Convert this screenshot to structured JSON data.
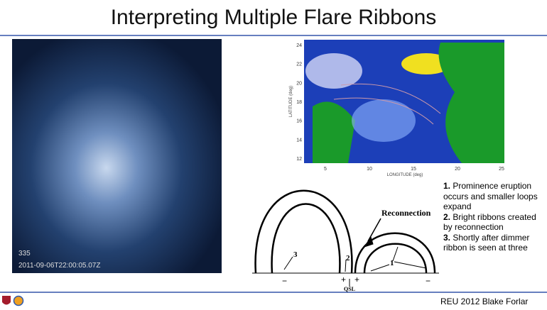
{
  "header": {
    "title": "Interpreting Multiple Flare Ribbons"
  },
  "left_image": {
    "label": "335",
    "timestamp": "2011-09-06T22:00:05.07Z"
  },
  "map": {
    "y_axis_label": "LATITUDE (deg)",
    "x_axis_label": "LONGITUDE (deg)",
    "y_ticks": [
      "24",
      "22",
      "20",
      "18",
      "16",
      "14",
      "12"
    ],
    "x_ticks": [
      "5",
      "10",
      "15",
      "20",
      "25"
    ]
  },
  "diagram": {
    "reconnection": "Reconnection",
    "label_3": "3",
    "label_2": "2",
    "label_1": "1",
    "qsl": "QSL",
    "plus": "+",
    "minus": "−"
  },
  "notes": [
    {
      "number": "1.",
      "text": "Prominence eruption occurs and smaller loops expand"
    },
    {
      "number": "2.",
      "text": "Bright ribbons created by reconnection"
    },
    {
      "number": "3.",
      "text": "Shortly after dimmer ribbon is seen at three"
    }
  ],
  "footer": {
    "text": "REU 2012 Blake Forlar"
  }
}
